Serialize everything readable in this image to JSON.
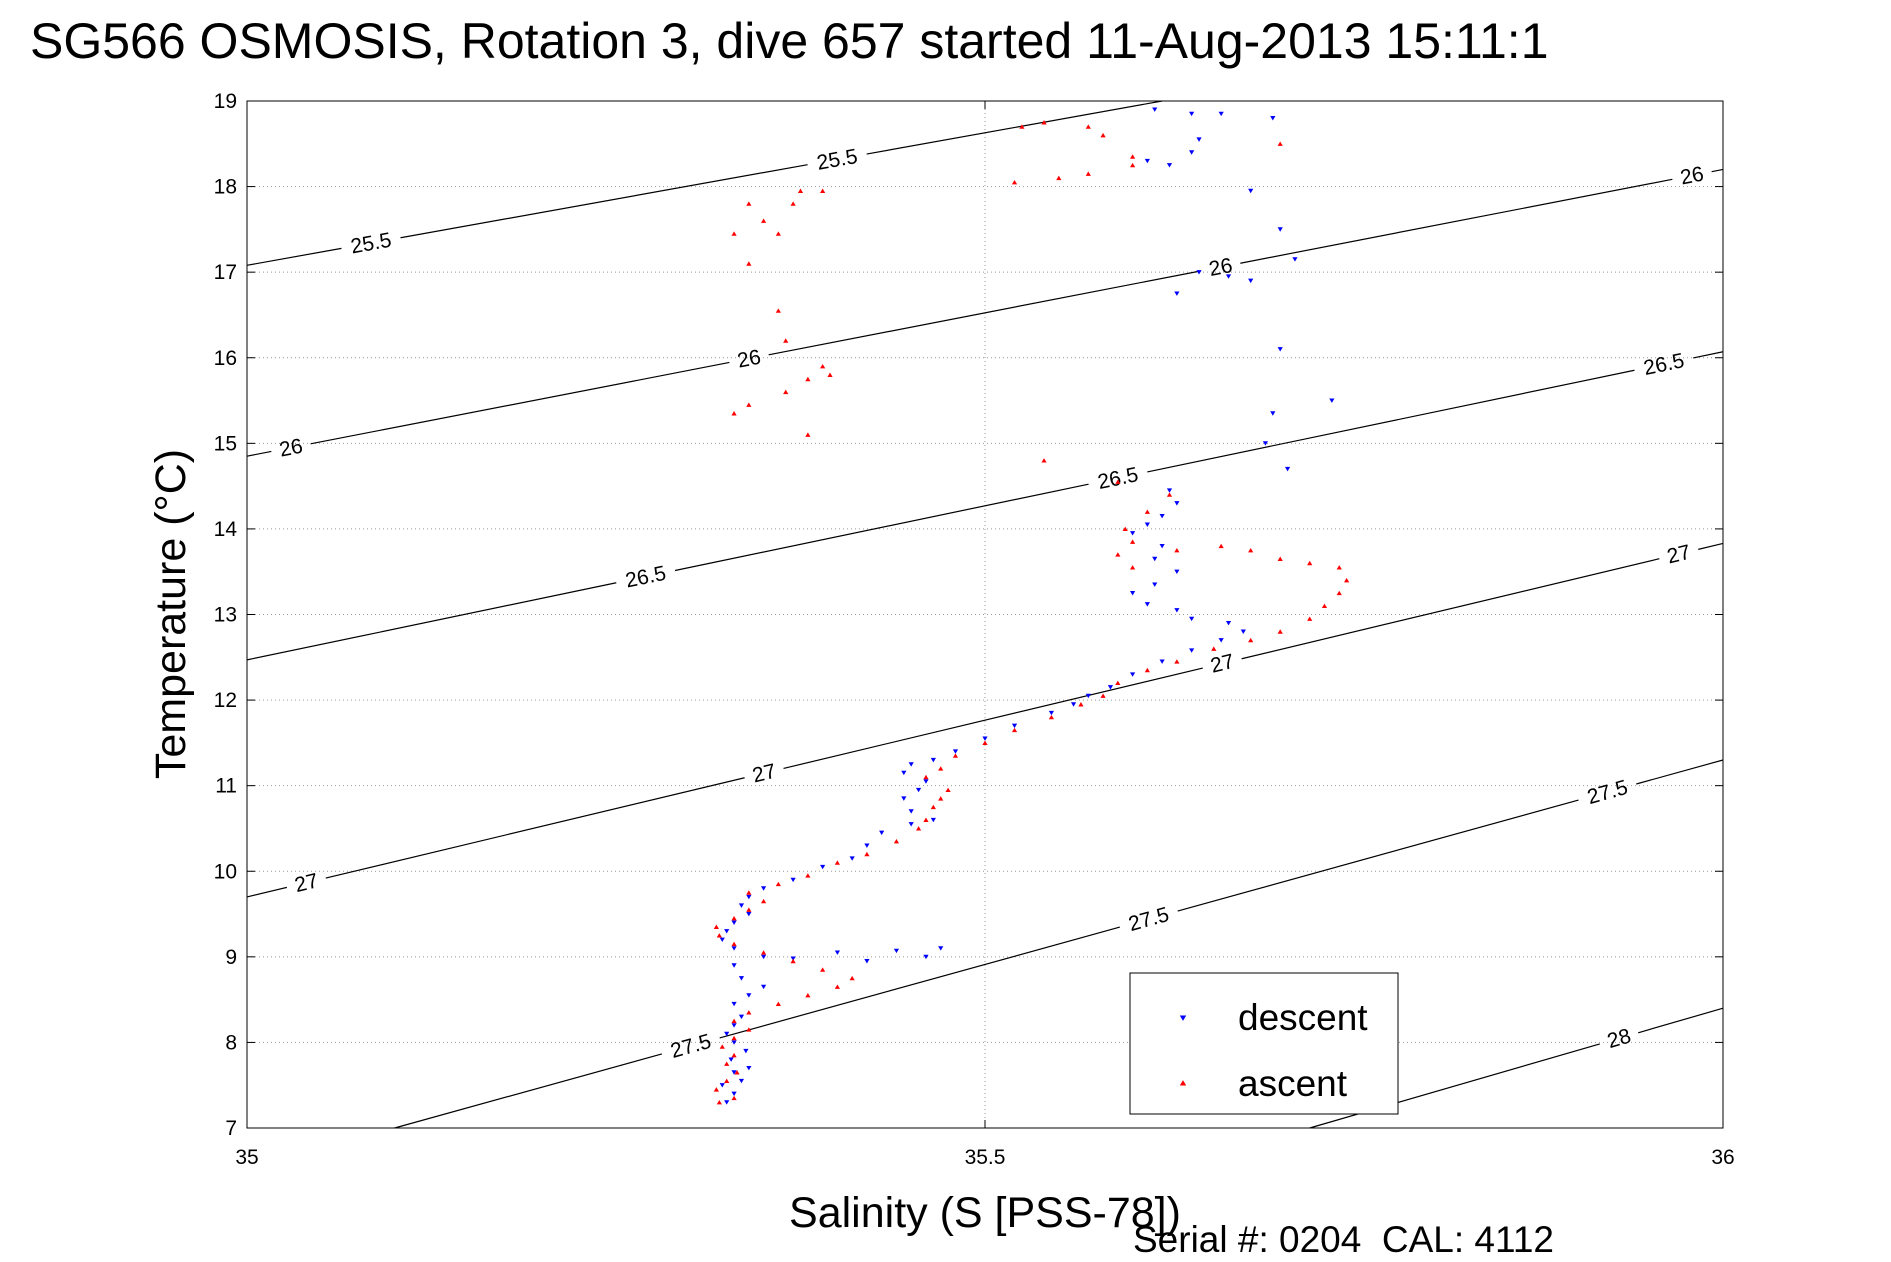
{
  "chart_data": {
    "type": "scatter",
    "title": "SG566 OSMOSIS, Rotation 3, dive 657 started 11-Aug-2013 15:11:1",
    "xlabel": "Salinity (S [PSS-78])",
    "ylabel": "Temperature (°C)",
    "xlim": [
      35,
      36
    ],
    "ylim": [
      7,
      19
    ],
    "xticks": [
      35,
      35.5,
      36
    ],
    "xtick_labels": [
      "35",
      "35.5",
      "36"
    ],
    "yticks": [
      7,
      8,
      9,
      10,
      11,
      12,
      13,
      14,
      15,
      16,
      17,
      18,
      19
    ],
    "ytick_labels": [
      "7",
      "8",
      "9",
      "10",
      "11",
      "12",
      "13",
      "14",
      "15",
      "16",
      "17",
      "18",
      "19"
    ],
    "grid": true,
    "legend_position": "bottom-right",
    "contours": [
      {
        "level": 25.5,
        "label": "25.5",
        "from": [
          35.0,
          17.08
        ],
        "to": [
          35.62,
          19.0
        ],
        "label_points": [
          [
            35.084,
            17.34
          ],
          [
            35.4,
            18.3
          ]
        ]
      },
      {
        "level": 26,
        "label": "26",
        "from": [
          35.0,
          14.85
        ],
        "to": [
          36.0,
          18.2
        ],
        "label_points": [
          [
            35.03,
            14.93
          ],
          [
            35.34,
            16.0
          ],
          [
            35.66,
            17.03
          ],
          [
            35.98,
            18.04
          ]
        ]
      },
      {
        "level": 26.5,
        "label": "26.5",
        "from": [
          35.0,
          12.47
        ],
        "to": [
          36.0,
          16.07
        ],
        "label_points": [
          [
            35.27,
            13.45
          ],
          [
            35.59,
            14.6
          ],
          [
            35.96,
            15.92
          ]
        ]
      },
      {
        "level": 27,
        "label": "27",
        "from": [
          35.0,
          9.7
        ],
        "to": [
          36.0,
          13.83
        ],
        "label_points": [
          [
            35.04,
            9.88
          ],
          [
            35.35,
            11.17
          ],
          [
            35.66,
            12.48
          ],
          [
            35.97,
            13.71
          ]
        ]
      },
      {
        "level": 27.5,
        "label": "27.5",
        "from": [
          35.1,
          7.0
        ],
        "to": [
          36.0,
          11.3
        ],
        "label_points": [
          [
            35.3,
            8.0
          ],
          [
            35.61,
            9.5
          ],
          [
            35.92,
            11.03
          ]
        ]
      },
      {
        "level": 28,
        "label": "28",
        "from": [
          35.72,
          7.0
        ],
        "to": [
          36.0,
          8.4
        ],
        "label_points": [
          [
            35.93,
            8.02
          ]
        ]
      }
    ],
    "series": [
      {
        "name": "descent",
        "color": "#0000ff",
        "marker": "triangle-down",
        "points": [
          [
            35.325,
            7.3
          ],
          [
            35.33,
            7.4
          ],
          [
            35.322,
            7.5
          ],
          [
            35.335,
            7.55
          ],
          [
            35.33,
            7.65
          ],
          [
            35.34,
            7.7
          ],
          [
            35.328,
            7.8
          ],
          [
            35.338,
            7.9
          ],
          [
            35.33,
            8.0
          ],
          [
            35.325,
            8.1
          ],
          [
            35.33,
            8.2
          ],
          [
            35.335,
            8.3
          ],
          [
            35.33,
            8.45
          ],
          [
            35.34,
            8.55
          ],
          [
            35.35,
            8.65
          ],
          [
            35.335,
            8.75
          ],
          [
            35.33,
            8.9
          ],
          [
            35.35,
            9.0
          ],
          [
            35.4,
            9.05
          ],
          [
            35.44,
            9.07
          ],
          [
            35.47,
            9.1
          ],
          [
            35.46,
            9.0
          ],
          [
            35.42,
            8.95
          ],
          [
            35.37,
            8.98
          ],
          [
            35.33,
            9.1
          ],
          [
            35.322,
            9.2
          ],
          [
            35.325,
            9.3
          ],
          [
            35.33,
            9.4
          ],
          [
            35.34,
            9.5
          ],
          [
            35.335,
            9.6
          ],
          [
            35.34,
            9.7
          ],
          [
            35.35,
            9.8
          ],
          [
            35.37,
            9.9
          ],
          [
            35.39,
            10.05
          ],
          [
            35.41,
            10.15
          ],
          [
            35.42,
            10.3
          ],
          [
            35.43,
            10.45
          ],
          [
            35.45,
            10.55
          ],
          [
            35.465,
            10.6
          ],
          [
            35.45,
            10.7
          ],
          [
            35.445,
            10.85
          ],
          [
            35.455,
            10.95
          ],
          [
            35.46,
            11.05
          ],
          [
            35.445,
            11.15
          ],
          [
            35.45,
            11.25
          ],
          [
            35.465,
            11.3
          ],
          [
            35.48,
            11.4
          ],
          [
            35.5,
            11.55
          ],
          [
            35.52,
            11.7
          ],
          [
            35.545,
            11.85
          ],
          [
            35.56,
            11.95
          ],
          [
            35.57,
            12.05
          ],
          [
            35.585,
            12.15
          ],
          [
            35.6,
            12.3
          ],
          [
            35.62,
            12.45
          ],
          [
            35.64,
            12.58
          ],
          [
            35.66,
            12.7
          ],
          [
            35.675,
            12.8
          ],
          [
            35.665,
            12.9
          ],
          [
            35.64,
            12.95
          ],
          [
            35.63,
            13.05
          ],
          [
            35.61,
            13.12
          ],
          [
            35.6,
            13.25
          ],
          [
            35.615,
            13.35
          ],
          [
            35.63,
            13.5
          ],
          [
            35.615,
            13.65
          ],
          [
            35.62,
            13.8
          ],
          [
            35.6,
            13.95
          ],
          [
            35.61,
            14.05
          ],
          [
            35.62,
            14.15
          ],
          [
            35.63,
            14.3
          ],
          [
            35.625,
            14.45
          ],
          [
            35.69,
            15.0
          ],
          [
            35.695,
            15.35
          ],
          [
            35.705,
            14.7
          ],
          [
            35.735,
            15.5
          ],
          [
            35.7,
            16.1
          ],
          [
            35.68,
            16.9
          ],
          [
            35.665,
            16.95
          ],
          [
            35.645,
            17.0
          ],
          [
            35.63,
            16.75
          ],
          [
            35.71,
            17.15
          ],
          [
            35.7,
            17.5
          ],
          [
            35.68,
            17.95
          ],
          [
            35.61,
            18.3
          ],
          [
            35.625,
            18.25
          ],
          [
            35.64,
            18.4
          ],
          [
            35.645,
            18.55
          ],
          [
            35.615,
            18.9
          ],
          [
            35.64,
            18.85
          ],
          [
            35.66,
            18.85
          ],
          [
            35.695,
            18.8
          ]
        ]
      },
      {
        "name": "ascent",
        "color": "#ff0000",
        "marker": "triangle-up",
        "points": [
          [
            35.32,
            7.3
          ],
          [
            35.33,
            7.35
          ],
          [
            35.318,
            7.45
          ],
          [
            35.325,
            7.55
          ],
          [
            35.332,
            7.65
          ],
          [
            35.325,
            7.75
          ],
          [
            35.33,
            7.85
          ],
          [
            35.322,
            7.95
          ],
          [
            35.33,
            8.05
          ],
          [
            35.34,
            8.15
          ],
          [
            35.33,
            8.25
          ],
          [
            35.34,
            8.35
          ],
          [
            35.36,
            8.45
          ],
          [
            35.38,
            8.55
          ],
          [
            35.4,
            8.65
          ],
          [
            35.41,
            8.75
          ],
          [
            35.39,
            8.85
          ],
          [
            35.37,
            8.95
          ],
          [
            35.35,
            9.05
          ],
          [
            35.33,
            9.15
          ],
          [
            35.32,
            9.25
          ],
          [
            35.318,
            9.35
          ],
          [
            35.33,
            9.45
          ],
          [
            35.34,
            9.55
          ],
          [
            35.35,
            9.65
          ],
          [
            35.34,
            9.75
          ],
          [
            35.36,
            9.85
          ],
          [
            35.38,
            9.95
          ],
          [
            35.4,
            10.1
          ],
          [
            35.42,
            10.2
          ],
          [
            35.44,
            10.35
          ],
          [
            35.455,
            10.5
          ],
          [
            35.46,
            10.6
          ],
          [
            35.465,
            10.75
          ],
          [
            35.47,
            10.85
          ],
          [
            35.475,
            10.95
          ],
          [
            35.46,
            11.1
          ],
          [
            35.47,
            11.2
          ],
          [
            35.48,
            11.35
          ],
          [
            35.5,
            11.5
          ],
          [
            35.52,
            11.65
          ],
          [
            35.545,
            11.8
          ],
          [
            35.565,
            11.95
          ],
          [
            35.58,
            12.05
          ],
          [
            35.59,
            12.2
          ],
          [
            35.61,
            12.35
          ],
          [
            35.63,
            12.45
          ],
          [
            35.655,
            12.6
          ],
          [
            35.68,
            12.7
          ],
          [
            35.7,
            12.8
          ],
          [
            35.72,
            12.95
          ],
          [
            35.73,
            13.1
          ],
          [
            35.74,
            13.25
          ],
          [
            35.745,
            13.4
          ],
          [
            35.74,
            13.55
          ],
          [
            35.72,
            13.6
          ],
          [
            35.7,
            13.65
          ],
          [
            35.68,
            13.75
          ],
          [
            35.66,
            13.8
          ],
          [
            35.63,
            13.75
          ],
          [
            35.6,
            13.55
          ],
          [
            35.59,
            13.7
          ],
          [
            35.6,
            13.85
          ],
          [
            35.595,
            14.0
          ],
          [
            35.61,
            14.2
          ],
          [
            35.625,
            14.4
          ],
          [
            35.59,
            14.55
          ],
          [
            35.54,
            14.8
          ],
          [
            35.33,
            15.35
          ],
          [
            35.34,
            15.45
          ],
          [
            35.365,
            15.6
          ],
          [
            35.38,
            15.75
          ],
          [
            35.395,
            15.8
          ],
          [
            35.39,
            15.9
          ],
          [
            35.38,
            15.1
          ],
          [
            35.36,
            16.55
          ],
          [
            35.365,
            16.2
          ],
          [
            35.34,
            17.1
          ],
          [
            35.36,
            17.45
          ],
          [
            35.37,
            17.8
          ],
          [
            35.375,
            17.95
          ],
          [
            35.33,
            17.45
          ],
          [
            35.35,
            17.6
          ],
          [
            35.34,
            17.8
          ],
          [
            35.39,
            17.95
          ],
          [
            35.52,
            18.05
          ],
          [
            35.55,
            18.1
          ],
          [
            35.57,
            18.15
          ],
          [
            35.6,
            18.25
          ],
          [
            35.58,
            18.6
          ],
          [
            35.57,
            18.7
          ],
          [
            35.54,
            18.75
          ],
          [
            35.525,
            18.7
          ],
          [
            35.6,
            18.35
          ],
          [
            35.7,
            18.5
          ]
        ]
      }
    ],
    "legend": [
      {
        "label": "descent",
        "color": "#0000ff",
        "marker": "triangle-down"
      },
      {
        "label": "ascent",
        "color": "#ff0000",
        "marker": "triangle-up"
      }
    ]
  },
  "footer": {
    "serial_text": "Serial #: 0204  CAL: 4112"
  }
}
